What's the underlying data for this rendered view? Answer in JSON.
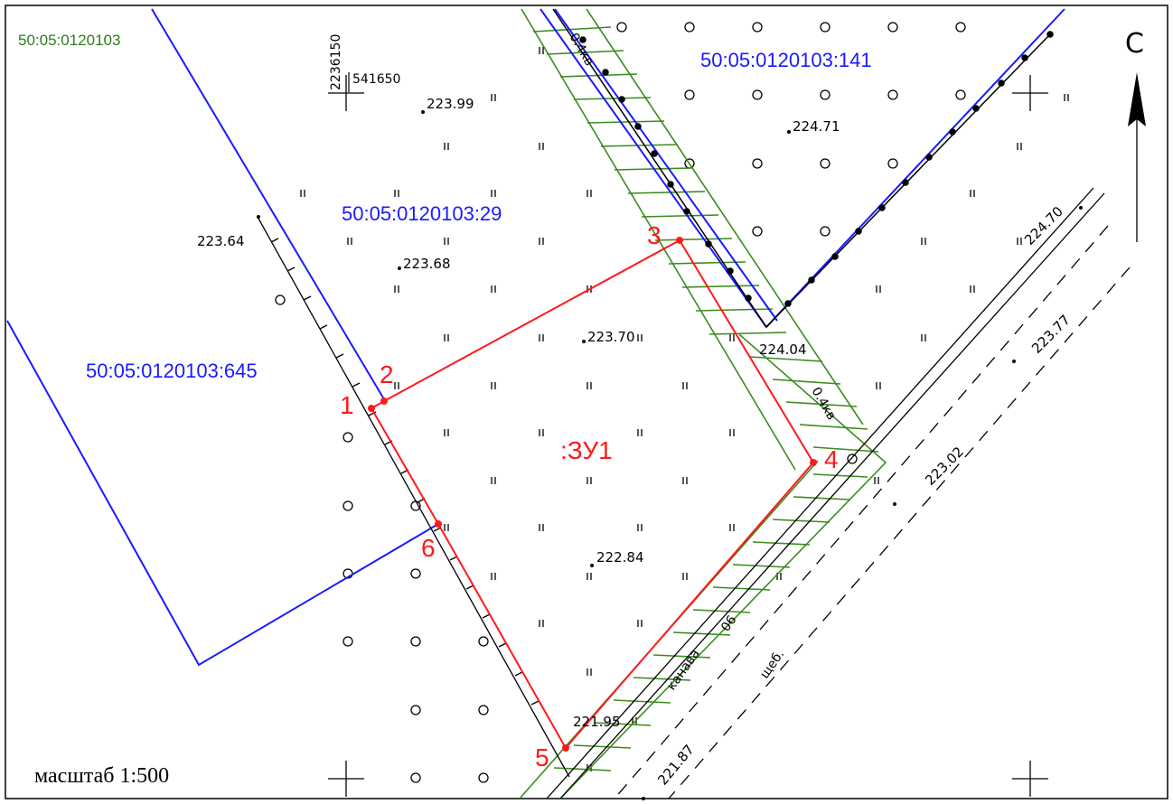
{
  "map": {
    "block_number": "50:05:0120103",
    "parcels": [
      {
        "id": "p141",
        "label": "50:05:0120103:141"
      },
      {
        "id": "p29",
        "label": "50:05:0120103:29"
      },
      {
        "id": "p645",
        "label": "50:05:0120103:645"
      }
    ],
    "new_parcel_label": ":ЗУ1",
    "points": [
      {
        "n": "1"
      },
      {
        "n": "2"
      },
      {
        "n": "3"
      },
      {
        "n": "4"
      },
      {
        "n": "5"
      },
      {
        "n": "6"
      }
    ],
    "grid_coords": {
      "x": "2236150",
      "y": "541650"
    },
    "elevations": [
      "223.99",
      "224.71",
      "223.64",
      "223.68",
      "223.70",
      "224.04",
      "222.84",
      "221.95",
      "224.70",
      "223.77",
      "223.02",
      "221.87"
    ],
    "line_labels": {
      "power_top": "0.4кв",
      "power_right": "0.4кв",
      "ditch": "канава",
      "ditch_code": "06",
      "road": "щеб."
    },
    "north_label": "С",
    "scale_text": "масштаб 1:500",
    "colors": {
      "parcel_border": "#1a1aff",
      "new_parcel": "#ff1a1a",
      "zone": "#3d8b1f",
      "block": "#2e7d1a"
    }
  }
}
